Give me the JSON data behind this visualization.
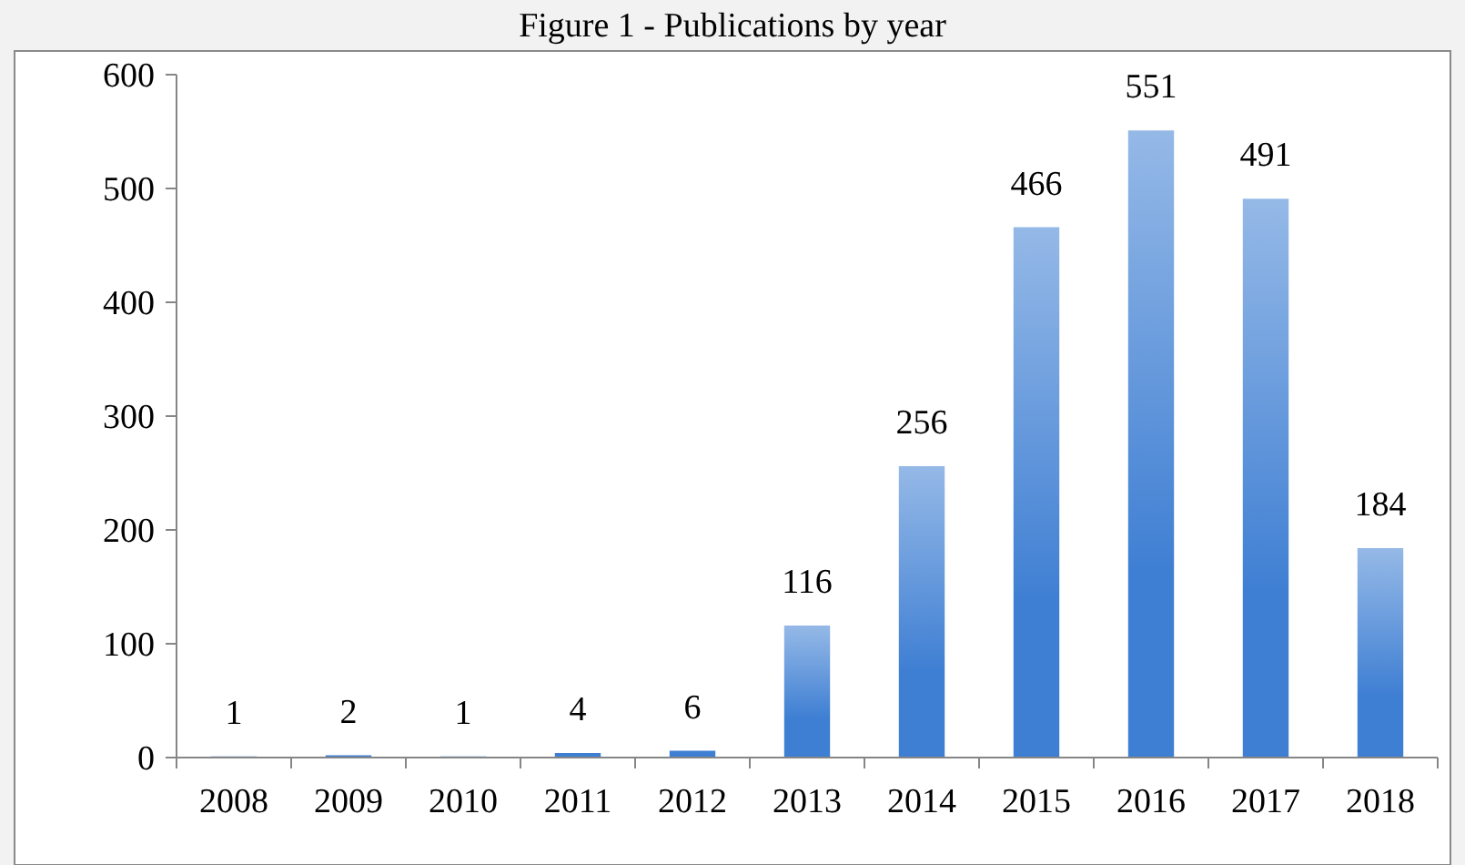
{
  "chart_data": {
    "type": "bar",
    "title": "Figure 1 - Publications by year",
    "categories": [
      "2008",
      "2009",
      "2010",
      "2011",
      "2012",
      "2013",
      "2014",
      "2015",
      "2016",
      "2017",
      "2018"
    ],
    "values": [
      1,
      2,
      1,
      4,
      6,
      116,
      256,
      466,
      551,
      491,
      184
    ],
    "color": "#3f7fd3",
    "ylim": [
      0,
      600
    ],
    "yticks": [
      0,
      100,
      200,
      300,
      400,
      500,
      600
    ],
    "data_labels": true,
    "grid": false
  }
}
